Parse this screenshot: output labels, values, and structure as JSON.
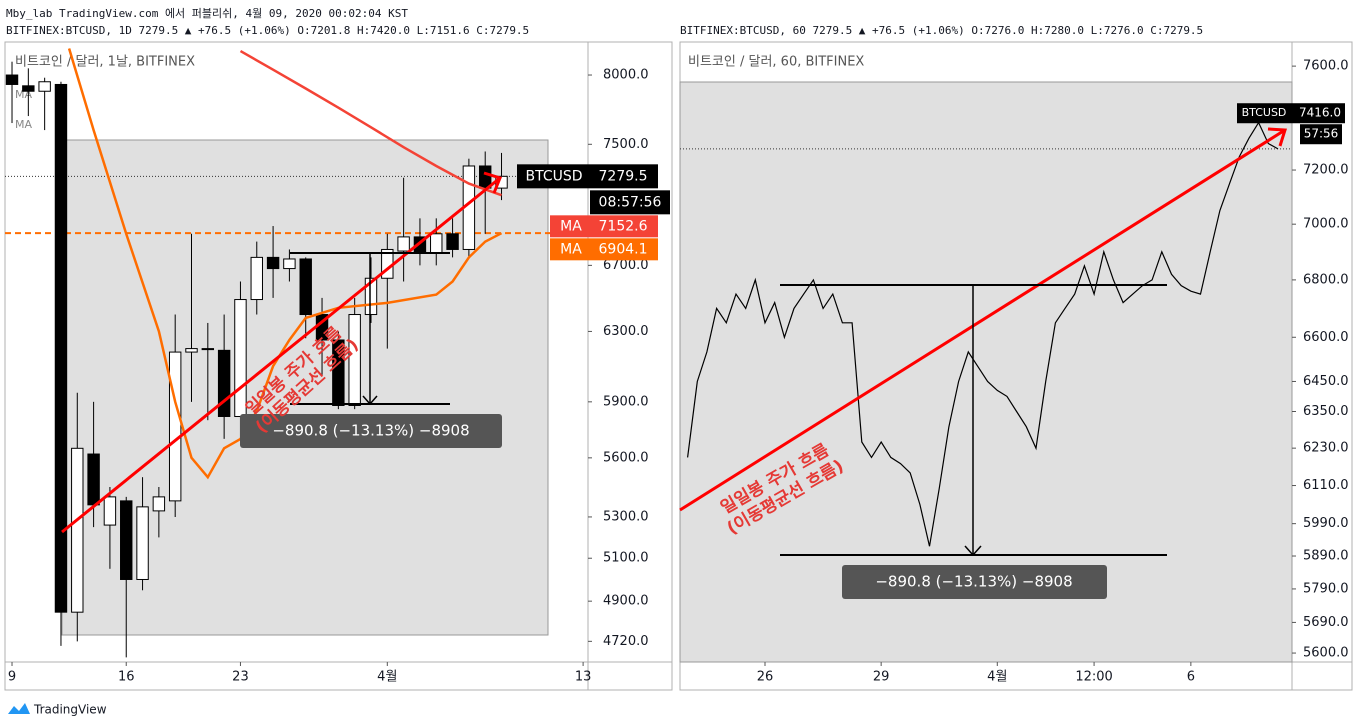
{
  "header": {
    "publisher": "Mby_lab TradingView.com 에서 퍼블리쉬, 4월 09, 2020 00:02:04 KST"
  },
  "footer": {
    "brand": "TradingView"
  },
  "chart_data": [
    {
      "type": "candlestick",
      "symbol_line": "BITFINEX:BTCUSD, 1D 7279.5 ▲ +76.5 (+1.06%) O:7201.8 H:7420.0 L:7151.6 C:7279.5",
      "legend": "비트코인 / 달러, 1날, BITFINEX",
      "x": [
        0,
        1,
        2,
        3,
        4,
        5,
        6,
        7,
        8,
        9,
        10,
        11,
        12,
        13,
        14,
        15,
        16,
        17,
        18,
        19,
        20,
        21,
        22,
        23,
        24,
        25,
        26,
        27,
        28,
        29,
        30
      ],
      "open": [
        8000,
        7920,
        7880,
        7930,
        4850,
        5620,
        5260,
        5380,
        5000,
        5330,
        5380,
        6180,
        6200,
        6190,
        5820,
        6490,
        6750,
        6680,
        6740,
        6400,
        6250,
        5880,
        6400,
        6620,
        6790,
        6880,
        6780,
        6900,
        6800,
        7350,
        7200
      ],
      "high": [
        8100,
        8050,
        7980,
        7950,
        5950,
        5900,
        5450,
        5400,
        5500,
        5450,
        6400,
        6900,
        6350,
        6400,
        6600,
        6850,
        6950,
        6800,
        6750,
        6500,
        6300,
        6500,
        6750,
        6900,
        7270,
        7000,
        7000,
        7000,
        7400,
        7450,
        7440
      ],
      "low": [
        7650,
        7700,
        7600,
        4700,
        4720,
        5250,
        5050,
        4650,
        4950,
        5200,
        5300,
        5900,
        5800,
        5700,
        5700,
        6400,
        6500,
        6600,
        6260,
        6050,
        5860,
        5860,
        6350,
        6200,
        6600,
        6700,
        6700,
        6750,
        6750,
        6900,
        7120
      ],
      "close": [
        7930,
        7880,
        7950,
        4850,
        5650,
        5360,
        5400,
        5000,
        5350,
        5400,
        6180,
        6200,
        6200,
        5820,
        6490,
        6750,
        6680,
        6740,
        6400,
        6250,
        5880,
        6400,
        6620,
        6800,
        6880,
        6780,
        6900,
        6800,
        7350,
        7200,
        7279.5
      ],
      "up_color": "#ffffff",
      "down_color": "#000000",
      "series": [
        {
          "name": "MA",
          "color": "#f44336",
          "x": [
            14,
            16,
            18,
            20,
            22,
            24,
            26,
            28,
            30
          ],
          "values": [
            8180,
            8040,
            7900,
            7760,
            7620,
            7480,
            7350,
            7230,
            7152.6
          ]
        },
        {
          "name": "MA",
          "color": "#ff6d00",
          "x": [
            3.5,
            5,
            7,
            9,
            10,
            11,
            12,
            13,
            14,
            15,
            16,
            17,
            18,
            20,
            23,
            26,
            27,
            28,
            29,
            30
          ],
          "values": [
            8200,
            7600,
            6900,
            6300,
            5900,
            5600,
            5500,
            5650,
            5700,
            5850,
            6100,
            6250,
            6380,
            6440,
            6470,
            6520,
            6600,
            6750,
            6850,
            6904.1
          ]
        }
      ],
      "last_label": "BTCUSD",
      "timer": "08:57:56",
      "log_scale": true,
      "ylim": [
        4630,
        8250
      ],
      "yticks": [
        {
          "value": 8000,
          "label": "8000.0"
        },
        {
          "value": 7500,
          "label": "7500.0"
        },
        {
          "value": 6700,
          "label": "6700.0"
        },
        {
          "value": 6300,
          "label": "6300.0"
        },
        {
          "value": 5900,
          "label": "5900.0"
        },
        {
          "value": 5600,
          "label": "5600.0"
        },
        {
          "value": 5300,
          "label": "5300.0"
        },
        {
          "value": 5100,
          "label": "5100.0"
        },
        {
          "value": 4900,
          "label": "4900.0"
        },
        {
          "value": 4720,
          "label": "4720.0"
        }
      ],
      "xlim": [
        -0.43,
        35.3
      ],
      "xticks": [
        {
          "value": 0,
          "label": "9"
        },
        {
          "value": 7,
          "label": "16"
        },
        {
          "value": 14,
          "label": "23"
        },
        {
          "value": 23,
          "label": "4월"
        },
        {
          "value": 35,
          "label": "13"
        }
      ],
      "measure": "−890.8 (−13.13%) −8908",
      "annotation": [
        "일일봉 주가 흐름",
        "(이동평균선 흐름)"
      ]
    },
    {
      "type": "line",
      "symbol_line": "BITFINEX:BTCUSD, 60 7279.5 ▲ +76.5 (+1.06%) O:7276.0 H:7280.0 L:7276.0 C:7279.5",
      "legend": "비트코인 / 달러, 60, BITFINEX",
      "color": "#000000",
      "x": [
        -48,
        -42,
        -36,
        -30,
        -24,
        -18,
        -12,
        -6,
        0,
        6,
        12,
        18,
        24,
        30,
        36,
        42,
        48,
        54,
        60,
        66,
        72,
        78,
        84,
        90,
        96,
        102,
        108,
        114,
        120,
        126,
        132,
        138,
        144,
        150,
        156,
        162,
        168,
        174,
        180,
        186,
        192,
        198,
        204,
        210,
        216,
        222,
        228,
        234,
        240,
        246,
        252,
        258,
        264,
        270,
        276,
        282,
        288,
        294,
        300,
        306,
        312,
        318
      ],
      "values": [
        6200,
        6450,
        6550,
        6700,
        6650,
        6750,
        6700,
        6800,
        6650,
        6720,
        6600,
        6700,
        6750,
        6800,
        6700,
        6750,
        6650,
        6650,
        6250,
        6200,
        6250,
        6200,
        6180,
        6150,
        6050,
        5920,
        6100,
        6300,
        6450,
        6550,
        6500,
        6450,
        6420,
        6400,
        6350,
        6300,
        6230,
        6450,
        6650,
        6700,
        6750,
        6850,
        6750,
        6900,
        6800,
        6720,
        6750,
        6780,
        6800,
        6900,
        6820,
        6780,
        6760,
        6750,
        6900,
        7050,
        7150,
        7250,
        7320,
        7380,
        7300,
        7279.5
      ],
      "price_label": {
        "name": "BTCUSD",
        "value": 7416,
        "label": "7416.0"
      },
      "timer": "57:56",
      "log_scale": true,
      "ylim": [
        5574,
        7696
      ],
      "yticks": [
        {
          "value": 7600,
          "label": "7600.0"
        },
        {
          "value": 7200,
          "label": "7200.0"
        },
        {
          "value": 7000,
          "label": "7000.0"
        },
        {
          "value": 6800,
          "label": "6800.0"
        },
        {
          "value": 6600,
          "label": "6600.0"
        },
        {
          "value": 6450,
          "label": "6450.0"
        },
        {
          "value": 6350,
          "label": "6350.0"
        },
        {
          "value": 6230,
          "label": "6230.0"
        },
        {
          "value": 6110,
          "label": "6110.0"
        },
        {
          "value": 5990,
          "label": "5990.0"
        },
        {
          "value": 5890,
          "label": "5890.0"
        },
        {
          "value": 5790,
          "label": "5790.0"
        },
        {
          "value": 5690,
          "label": "5690.0"
        },
        {
          "value": 5600,
          "label": "5600.0"
        }
      ],
      "xlim": [
        -52.7,
        326.7
      ],
      "xticks": [
        {
          "value": 0,
          "label": "26"
        },
        {
          "value": 72,
          "label": "29"
        },
        {
          "value": 144,
          "label": "4월"
        },
        {
          "value": 204,
          "label": "12:00"
        },
        {
          "value": 264,
          "label": "6"
        }
      ],
      "measure": "−890.8 (−13.13%) −8908",
      "annotation": [
        "일일봉 주가 흐름",
        "(이동평균선 흐름)"
      ]
    }
  ]
}
